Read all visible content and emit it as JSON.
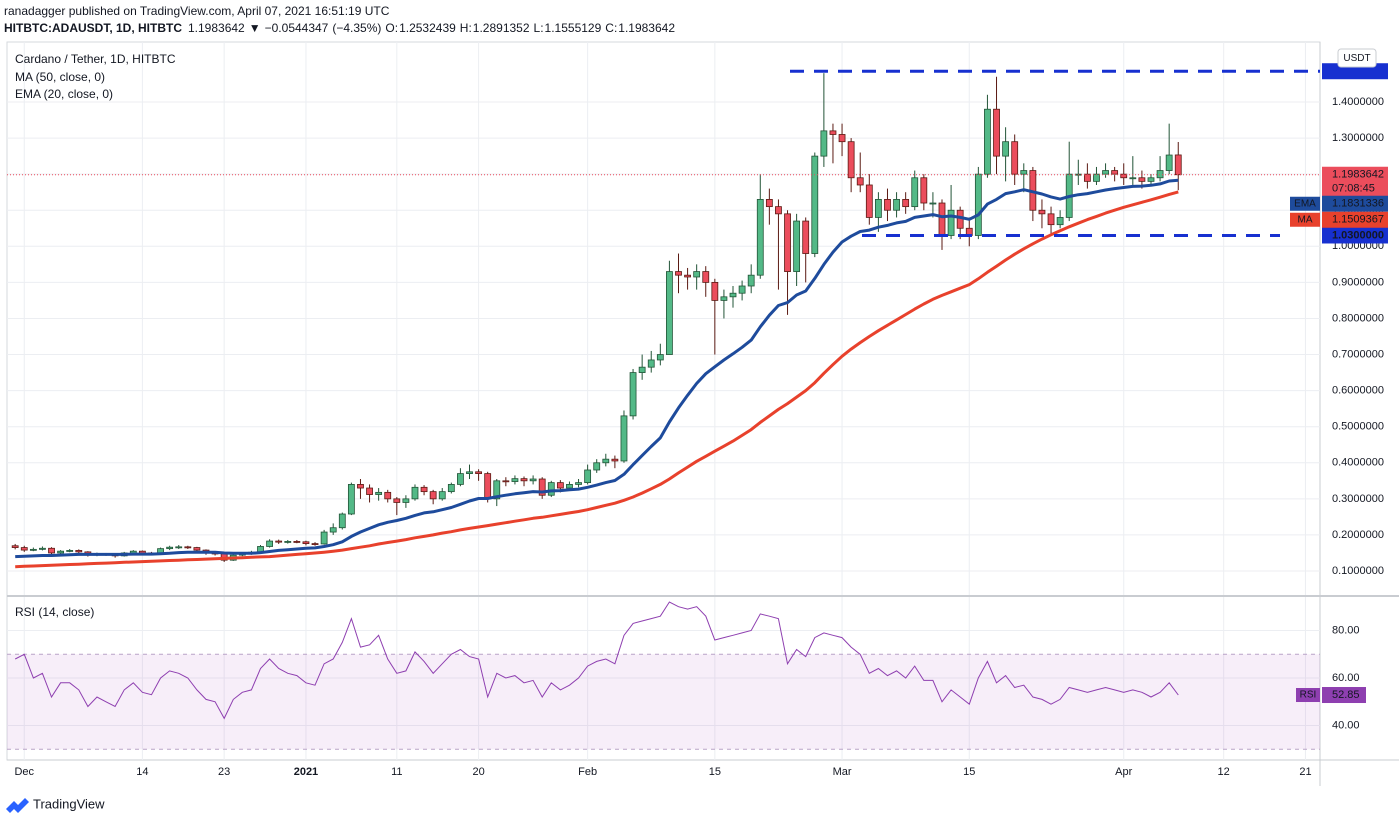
{
  "published": "ranadagger published on TradingView.com, April 07, 2021 16:51:19 UTC",
  "footer": "TradingView",
  "chart_data": {
    "type": "candlestick",
    "symbol": "HITBTC:ADAUSDT, 1D, HITBTC",
    "title": "Cardano / Tether, 1D, HITBTC",
    "direction_arrow": "▼",
    "change": {
      "value": -0.0544347,
      "label": "−0.0544347"
    },
    "change_percent": {
      "value": -4.35,
      "label": "(−4.35%)"
    },
    "ohlc_labels": {
      "open": "O:",
      "high": "H:",
      "low": "L:",
      "close": "C:"
    },
    "currency": "USDT",
    "countdown": "07:08:45",
    "up_color": "#53b987",
    "down_color": "#eb4d5c",
    "ohlc": {
      "open": [
        0.17,
        0.165,
        0.158,
        0.16,
        0.163,
        0.15,
        0.155,
        0.157,
        0.153,
        0.144,
        0.148,
        0.145,
        0.142,
        0.15,
        0.155,
        0.15,
        0.149,
        0.162,
        0.166,
        0.167,
        0.165,
        0.158,
        0.15,
        0.148,
        0.13,
        0.144,
        0.148,
        0.152,
        0.168,
        0.183,
        0.18,
        0.182,
        0.181,
        0.176,
        0.175,
        0.208,
        0.22,
        0.258,
        0.34,
        0.33,
        0.312,
        0.318,
        0.3,
        0.29,
        0.3,
        0.332,
        0.32,
        0.3,
        0.32,
        0.34,
        0.37,
        0.375,
        0.37,
        0.3,
        0.35,
        0.348,
        0.356,
        0.35,
        0.355,
        0.31,
        0.345,
        0.33,
        0.34,
        0.345,
        0.38,
        0.4,
        0.41,
        0.405,
        0.53,
        0.65,
        0.665,
        0.685,
        0.7,
        0.93,
        0.92,
        0.915,
        0.93,
        0.9,
        0.85,
        0.86,
        0.87,
        0.89,
        0.92,
        1.13,
        1.11,
        1.09,
        0.93,
        1.07,
        0.98,
        1.25,
        1.32,
        1.31,
        1.29,
        1.19,
        1.17,
        1.08,
        1.13,
        1.1,
        1.13,
        1.11,
        1.19,
        1.12,
        1.12,
        1.03,
        1.1,
        1.05,
        1.03,
        1.2,
        1.38,
        1.25,
        1.29,
        1.2,
        1.21,
        1.1,
        1.09,
        1.06,
        1.08,
        1.2,
        1.2,
        1.18,
        1.2,
        1.21,
        1.2,
        1.19,
        1.19,
        1.18,
        1.19,
        1.21,
        1.2532439
      ],
      "high": [
        0.175,
        0.17,
        0.165,
        0.168,
        0.166,
        0.158,
        0.161,
        0.16,
        0.155,
        0.151,
        0.15,
        0.147,
        0.153,
        0.158,
        0.157,
        0.153,
        0.165,
        0.17,
        0.172,
        0.17,
        0.167,
        0.16,
        0.154,
        0.15,
        0.147,
        0.152,
        0.156,
        0.172,
        0.188,
        0.187,
        0.186,
        0.186,
        0.184,
        0.18,
        0.214,
        0.232,
        0.262,
        0.345,
        0.355,
        0.34,
        0.33,
        0.325,
        0.305,
        0.31,
        0.34,
        0.338,
        0.325,
        0.33,
        0.345,
        0.385,
        0.395,
        0.382,
        0.375,
        0.355,
        0.36,
        0.365,
        0.362,
        0.365,
        0.36,
        0.35,
        0.352,
        0.348,
        0.355,
        0.395,
        0.41,
        0.425,
        0.42,
        0.545,
        0.66,
        0.7,
        0.71,
        0.73,
        0.96,
        0.98,
        0.94,
        0.95,
        0.945,
        0.91,
        0.88,
        0.89,
        0.905,
        0.95,
        1.2,
        1.16,
        1.13,
        1.1,
        1.09,
        1.08,
        1.26,
        1.48,
        1.34,
        1.34,
        1.3,
        1.26,
        1.2,
        1.15,
        1.16,
        1.15,
        1.15,
        1.21,
        1.2,
        1.15,
        1.13,
        1.17,
        1.11,
        1.08,
        1.22,
        1.42,
        1.47,
        1.33,
        1.31,
        1.23,
        1.22,
        1.13,
        1.11,
        1.1,
        1.29,
        1.24,
        1.23,
        1.22,
        1.23,
        1.22,
        1.23,
        1.25,
        1.21,
        1.2,
        1.25,
        1.34,
        1.2891352
      ],
      "low": [
        0.16,
        0.153,
        0.155,
        0.157,
        0.146,
        0.147,
        0.152,
        0.149,
        0.14,
        0.141,
        0.142,
        0.137,
        0.14,
        0.147,
        0.147,
        0.145,
        0.147,
        0.158,
        0.161,
        0.161,
        0.153,
        0.145,
        0.143,
        0.125,
        0.128,
        0.141,
        0.145,
        0.15,
        0.165,
        0.175,
        0.176,
        0.177,
        0.171,
        0.17,
        0.173,
        0.2,
        0.215,
        0.255,
        0.3,
        0.29,
        0.295,
        0.29,
        0.255,
        0.275,
        0.295,
        0.31,
        0.285,
        0.295,
        0.315,
        0.335,
        0.355,
        0.35,
        0.29,
        0.28,
        0.335,
        0.34,
        0.335,
        0.34,
        0.3,
        0.305,
        0.318,
        0.325,
        0.332,
        0.34,
        0.372,
        0.39,
        0.385,
        0.4,
        0.52,
        0.63,
        0.65,
        0.67,
        0.7,
        0.87,
        0.88,
        0.88,
        0.86,
        0.7,
        0.8,
        0.83,
        0.85,
        0.87,
        0.91,
        1.06,
        0.88,
        0.81,
        0.89,
        0.9,
        0.97,
        1.22,
        1.23,
        1.25,
        1.15,
        1.15,
        1.06,
        1.04,
        1.07,
        1.08,
        1.09,
        1.1,
        1.1,
        1.08,
        0.99,
        1.02,
        1.02,
        1.0,
        1.02,
        1.19,
        1.2,
        1.18,
        1.17,
        1.15,
        1.07,
        1.05,
        1.03,
        1.05,
        1.07,
        1.17,
        1.16,
        1.17,
        1.19,
        1.18,
        1.17,
        1.17,
        1.16,
        1.17,
        1.18,
        1.2,
        1.1555129
      ],
      "close": [
        0.165,
        0.158,
        0.16,
        0.163,
        0.15,
        0.155,
        0.157,
        0.153,
        0.144,
        0.148,
        0.145,
        0.142,
        0.15,
        0.155,
        0.15,
        0.149,
        0.162,
        0.166,
        0.167,
        0.165,
        0.158,
        0.15,
        0.148,
        0.13,
        0.144,
        0.148,
        0.152,
        0.168,
        0.183,
        0.18,
        0.182,
        0.181,
        0.176,
        0.175,
        0.208,
        0.22,
        0.258,
        0.34,
        0.33,
        0.312,
        0.318,
        0.3,
        0.29,
        0.3,
        0.332,
        0.32,
        0.3,
        0.32,
        0.34,
        0.37,
        0.375,
        0.37,
        0.3,
        0.35,
        0.348,
        0.356,
        0.35,
        0.355,
        0.31,
        0.345,
        0.33,
        0.34,
        0.345,
        0.38,
        0.4,
        0.41,
        0.405,
        0.53,
        0.65,
        0.665,
        0.685,
        0.7,
        0.93,
        0.92,
        0.915,
        0.93,
        0.9,
        0.85,
        0.86,
        0.87,
        0.89,
        0.92,
        1.13,
        1.11,
        1.09,
        0.93,
        1.07,
        0.98,
        1.25,
        1.32,
        1.31,
        1.29,
        1.19,
        1.17,
        1.08,
        1.13,
        1.1,
        1.13,
        1.11,
        1.19,
        1.12,
        1.12,
        1.03,
        1.1,
        1.05,
        1.03,
        1.2,
        1.38,
        1.25,
        1.29,
        1.2,
        1.21,
        1.1,
        1.09,
        1.06,
        1.08,
        1.2,
        1.2,
        1.18,
        1.2,
        1.21,
        1.2,
        1.19,
        1.19,
        1.18,
        1.19,
        1.21,
        1.253,
        1.1983642
      ]
    },
    "series": [
      {
        "name": "MA",
        "legend": "MA (50, close, 0)",
        "color": "#e8412c",
        "values": [
          0.112,
          0.113,
          0.114,
          0.115,
          0.116,
          0.117,
          0.118,
          0.119,
          0.12,
          0.121,
          0.122,
          0.123,
          0.124,
          0.125,
          0.126,
          0.127,
          0.128,
          0.129,
          0.13,
          0.131,
          0.132,
          0.133,
          0.134,
          0.135,
          0.136,
          0.137,
          0.138,
          0.139,
          0.14,
          0.142,
          0.144,
          0.146,
          0.148,
          0.15,
          0.152,
          0.155,
          0.158,
          0.162,
          0.166,
          0.17,
          0.175,
          0.179,
          0.183,
          0.187,
          0.192,
          0.196,
          0.2,
          0.205,
          0.209,
          0.214,
          0.218,
          0.222,
          0.226,
          0.23,
          0.234,
          0.238,
          0.242,
          0.246,
          0.249,
          0.253,
          0.257,
          0.261,
          0.265,
          0.27,
          0.276,
          0.282,
          0.288,
          0.296,
          0.305,
          0.316,
          0.328,
          0.34,
          0.355,
          0.372,
          0.388,
          0.404,
          0.418,
          0.432,
          0.446,
          0.46,
          0.476,
          0.492,
          0.512,
          0.53,
          0.548,
          0.564,
          0.582,
          0.6,
          0.622,
          0.648,
          0.672,
          0.695,
          0.715,
          0.733,
          0.75,
          0.766,
          0.781,
          0.796,
          0.811,
          0.826,
          0.84,
          0.853,
          0.864,
          0.874,
          0.884,
          0.894,
          0.91,
          0.928,
          0.945,
          0.962,
          0.978,
          0.993,
          1.007,
          1.02,
          1.032,
          1.043,
          1.054,
          1.064,
          1.074,
          1.083,
          1.092,
          1.1,
          1.108,
          1.115,
          1.122,
          1.129,
          1.136,
          1.144,
          1.1509367
        ]
      },
      {
        "name": "EMA",
        "legend": "EMA (20, close, 0)",
        "color": "#1e4b9c",
        "values": [
          0.14,
          0.141,
          0.142,
          0.143,
          0.143,
          0.144,
          0.145,
          0.146,
          0.146,
          0.146,
          0.146,
          0.146,
          0.146,
          0.147,
          0.147,
          0.147,
          0.148,
          0.149,
          0.151,
          0.152,
          0.152,
          0.152,
          0.152,
          0.15,
          0.149,
          0.149,
          0.149,
          0.151,
          0.154,
          0.157,
          0.159,
          0.161,
          0.163,
          0.164,
          0.168,
          0.173,
          0.181,
          0.196,
          0.208,
          0.218,
          0.228,
          0.235,
          0.24,
          0.246,
          0.254,
          0.261,
          0.264,
          0.27,
          0.276,
          0.285,
          0.294,
          0.301,
          0.301,
          0.306,
          0.31,
          0.314,
          0.317,
          0.32,
          0.319,
          0.322,
          0.323,
          0.325,
          0.327,
          0.332,
          0.338,
          0.345,
          0.351,
          0.368,
          0.395,
          0.42,
          0.445,
          0.469,
          0.513,
          0.552,
          0.587,
          0.62,
          0.647,
          0.666,
          0.685,
          0.702,
          0.72,
          0.74,
          0.777,
          0.809,
          0.836,
          0.844,
          0.865,
          0.876,
          0.911,
          0.95,
          0.984,
          1.012,
          1.028,
          1.041,
          1.045,
          1.053,
          1.058,
          1.065,
          1.069,
          1.08,
          1.084,
          1.088,
          1.082,
          1.084,
          1.08,
          1.075,
          1.087,
          1.117,
          1.13,
          1.146,
          1.151,
          1.157,
          1.151,
          1.145,
          1.137,
          1.131,
          1.138,
          1.143,
          1.146,
          1.151,
          1.156,
          1.16,
          1.163,
          1.166,
          1.167,
          1.169,
          1.173,
          1.181,
          1.1831336
        ]
      }
    ],
    "levels": [
      {
        "value": 1.4852896
      },
      {
        "value": 1.03,
        "label": "1.0300000"
      }
    ],
    "level_color": "#1730d0",
    "xlim": [
      -0.9,
      143.6
    ],
    "xticks": [
      {
        "value": 1,
        "label": "Dec"
      },
      {
        "value": 14,
        "label": "14"
      },
      {
        "value": 23,
        "label": "23"
      },
      {
        "value": 32,
        "label": "2021"
      },
      {
        "value": 42,
        "label": "11"
      },
      {
        "value": 51,
        "label": "20"
      },
      {
        "value": 63,
        "label": "Feb"
      },
      {
        "value": 77,
        "label": "15"
      },
      {
        "value": 91,
        "label": "Mar"
      },
      {
        "value": 105,
        "label": "15"
      },
      {
        "value": 122,
        "label": "Apr"
      },
      {
        "value": 133,
        "label": "12"
      },
      {
        "value": 142,
        "label": "21"
      }
    ],
    "ylim": [
      0.0335,
      1.558
    ],
    "yticks": [
      {
        "value": 0.1,
        "label": "0.1000000"
      },
      {
        "value": 0.2,
        "label": "0.2000000"
      },
      {
        "value": 0.3,
        "label": "0.3000000"
      },
      {
        "value": 0.4,
        "label": "0.4000000"
      },
      {
        "value": 0.5,
        "label": "0.5000000"
      },
      {
        "value": 0.6,
        "label": "0.6000000"
      },
      {
        "value": 0.7,
        "label": "0.7000000"
      },
      {
        "value": 0.8,
        "label": "0.8000000"
      },
      {
        "value": 0.9,
        "label": "0.9000000"
      },
      {
        "value": 1.0,
        "label": "1.0000000"
      },
      {
        "value": 1.1,
        "label": "1.1000000"
      },
      {
        "value": 1.2,
        "label": "1.2000000"
      },
      {
        "value": 1.3,
        "label": "1.3000000"
      },
      {
        "value": 1.4,
        "label": "1.4000000"
      }
    ],
    "grid": true,
    "rsi": {
      "type": "line",
      "title": "RSI (14, close)",
      "name": "RSI",
      "color": "#8e3fb0",
      "band": [
        30,
        70
      ],
      "band_color": "#9c27b0",
      "ylim": [
        25.5,
        94.1
      ],
      "yticks": [
        {
          "value": 40,
          "label": "40.00"
        },
        {
          "value": 60,
          "label": "60.00"
        },
        {
          "value": 80,
          "label": "80.00"
        }
      ],
      "values": [
        68,
        70,
        60,
        62,
        52,
        58,
        58,
        55,
        48,
        52,
        50,
        48,
        55,
        58,
        54,
        53,
        60,
        63,
        62,
        60,
        55,
        51,
        50,
        43,
        51,
        54,
        55,
        64,
        68,
        64,
        62,
        61,
        58,
        57,
        66,
        68,
        75,
        85,
        73,
        74,
        78,
        68,
        62,
        63,
        71,
        67,
        62,
        66,
        70,
        72,
        69,
        68,
        52,
        62,
        60,
        61,
        58,
        59,
        52,
        58,
        55,
        57,
        60,
        65,
        67,
        68,
        66,
        78,
        83,
        84,
        85,
        86,
        92,
        90,
        89,
        90,
        86,
        76,
        77,
        78,
        79,
        80,
        87,
        86,
        85,
        66,
        72,
        69,
        77,
        79,
        78,
        77,
        73,
        70,
        62,
        64,
        61,
        63,
        60,
        65,
        59,
        59,
        50,
        55,
        52,
        49,
        60,
        67,
        58,
        61,
        56,
        57,
        52,
        51,
        49,
        51,
        56,
        55,
        54,
        55,
        56,
        55,
        54,
        55,
        54,
        52,
        54,
        58,
        52.85
      ]
    }
  }
}
